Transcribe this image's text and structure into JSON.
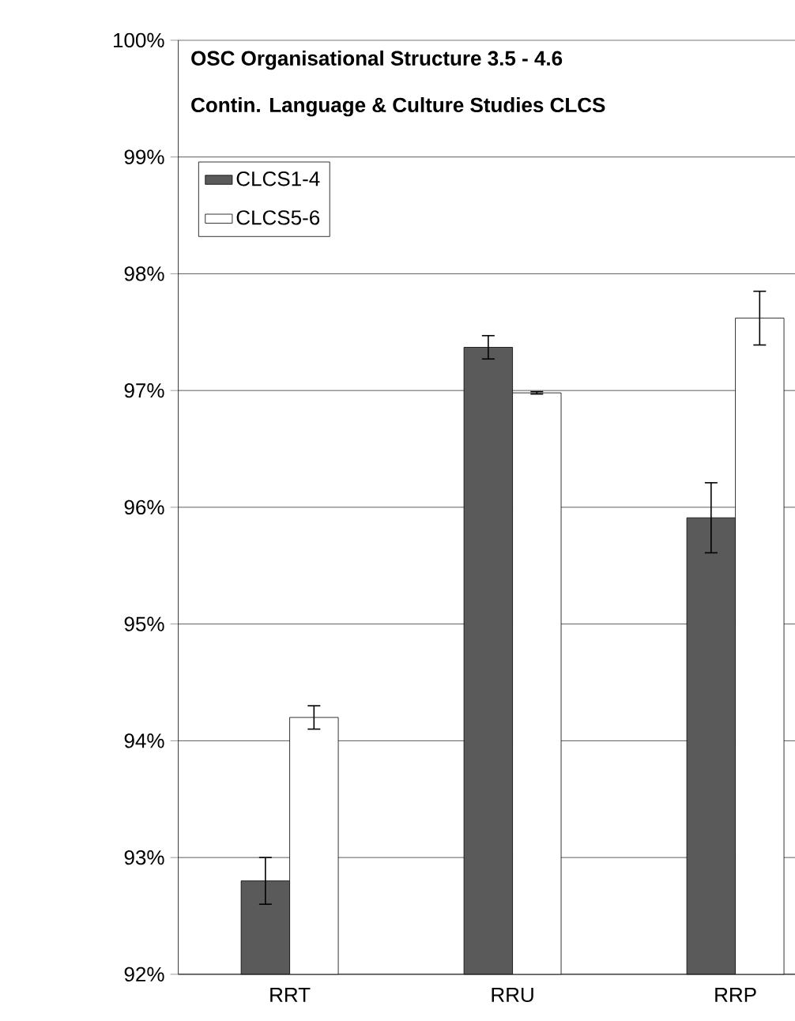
{
  "chart_data": {
    "type": "bar",
    "title": "OSC      Organisational Structure 3.5 - 4.6",
    "subtitle": "Contin. Language & Culture Studies CLCS",
    "categories": [
      "RRT",
      "RRU",
      "RRP"
    ],
    "series": [
      {
        "name": "CLCS1-4",
        "color": "#5a5a5a",
        "values": [
          92.8,
          97.37,
          95.91
        ],
        "errors": [
          0.2,
          0.1,
          0.3
        ]
      },
      {
        "name": "CLCS5-6",
        "color": "#ffffff",
        "values": [
          94.2,
          96.98,
          97.62
        ],
        "errors": [
          0.1,
          0.01,
          0.23
        ]
      }
    ],
    "ylim": [
      92,
      100
    ],
    "yticks": [
      {
        "value": 92,
        "label": "92%"
      },
      {
        "value": 93,
        "label": "93%"
      },
      {
        "value": 94,
        "label": "94%"
      },
      {
        "value": 95,
        "label": "95%"
      },
      {
        "value": 96,
        "label": "96%"
      },
      {
        "value": 97,
        "label": "97%"
      },
      {
        "value": 98,
        "label": "98%"
      },
      {
        "value": 99,
        "label": "99%"
      },
      {
        "value": 100,
        "label": "100%"
      }
    ],
    "grid": "y",
    "legend": "top left"
  }
}
